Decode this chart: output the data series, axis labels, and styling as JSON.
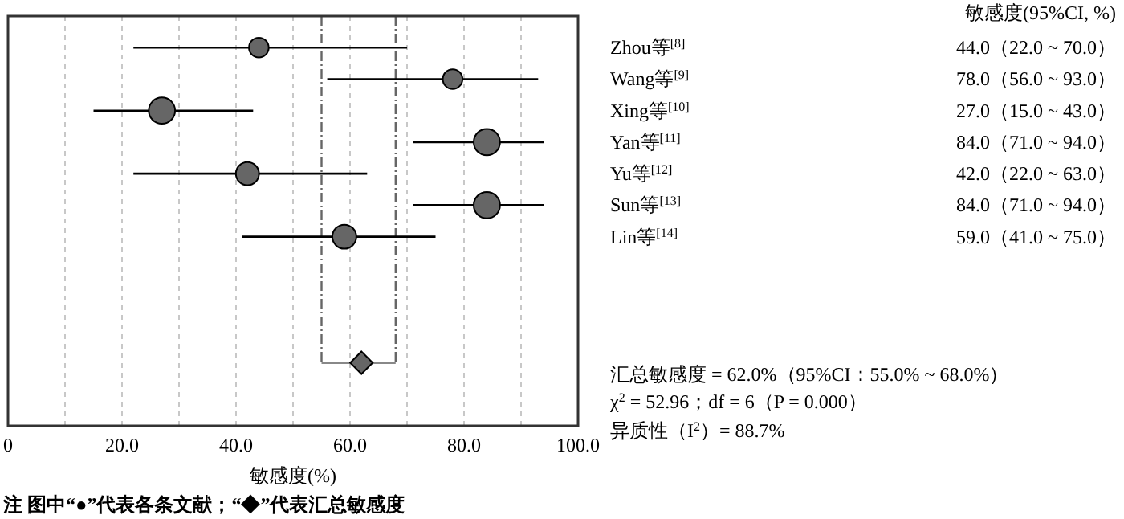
{
  "chart_data": {
    "type": "bubble",
    "orientation": "horizontal",
    "categories": [
      "Zhou等$^{[8]}$",
      "Wang等$^{[9]}$",
      "Xing等$^{[10]}$",
      "Yan等$^{[11]}$",
      "Yu等$^{[12]}$",
      "Sun等$^{[13]}$",
      "Lin等$^{[14]}$",
      null,
      null,
      null,
      null,
      null
    ],
    "series": [
      {
        "type": "bubble",
        "color": "#666666",
        "marker": "circle",
        "values": [
          44.0,
          78.0,
          27.0,
          84.0,
          42.0,
          84.0,
          59.0,
          null,
          null,
          null,
          null,
          null
        ],
        "sizes": [
          0.56,
          0.56,
          1,
          1,
          0.77,
          1,
          0.83,
          null,
          null,
          null,
          null,
          null
        ],
        "errors": [
          [
            22.0,
            70.0
          ],
          [
            56.0,
            93.0
          ],
          [
            15.0,
            43.0
          ],
          [
            71.0,
            94.0
          ],
          [
            22.0,
            63.0
          ],
          [
            71.0,
            94.0
          ],
          [
            41.0,
            75.0
          ],
          null,
          null,
          null,
          null,
          null
        ],
        "value_labels": [
          "44.0（22.0 ~ 70.0）",
          "78.0（56.0 ~ 93.0）",
          "27.0（15.0 ~ 43.0）",
          "84.0（71.0 ~ 94.0）",
          "42.0（22.0 ~ 63.0）",
          "84.0（71.0 ~ 94.0）",
          "59.0（41.0 ~ 75.0）",
          null,
          null,
          null,
          null,
          null
        ]
      },
      {
        "type": "scatter",
        "color": "#666666",
        "marker": "diamond",
        "values": [
          null,
          null,
          null,
          null,
          null,
          null,
          null,
          null,
          null,
          null,
          62.0,
          null
        ],
        "errors": [
          null,
          null,
          null,
          null,
          null,
          null,
          null,
          null,
          null,
          null,
          [
            55.0,
            68.0
          ],
          null
        ]
      }
    ],
    "ref_lines": [
      {
        "axis": "x",
        "value": 55.0,
        "line_style": "dashdot",
        "color": "#666666"
      },
      {
        "axis": "x",
        "value": 68.0,
        "line_style": "dashdot",
        "color": "#666666"
      }
    ],
    "xlim": [
      0,
      100
    ],
    "xticks": [
      {
        "value": 0,
        "label": "0"
      },
      {
        "value": 10,
        "label": null
      },
      {
        "value": 20,
        "label": "20.0"
      },
      {
        "value": 30,
        "label": null
      },
      {
        "value": 40,
        "label": "40.0"
      },
      {
        "value": 50,
        "label": null
      },
      {
        "value": 60,
        "label": "60.0"
      },
      {
        "value": 70,
        "label": null
      },
      {
        "value": 80,
        "label": "80.0"
      },
      {
        "value": 90,
        "label": null
      },
      {
        "value": 100,
        "label": "100.0"
      }
    ],
    "grid": "x",
    "xlabel": "敏感度(%)",
    "legend_title": "敏感度(95%CI, %)",
    "annotations": [
      "汇总敏感度 = 62.0%（95%CI：55.0% ~ 68.0%）",
      "χ$^{2}$ = 52.96；df = 6（P = 0.000）",
      "异质性（I$^{2}$）= 88.7%",
      "注  图中“●”代表各条文献；“◆”代表汇总敏感度"
    ]
  }
}
